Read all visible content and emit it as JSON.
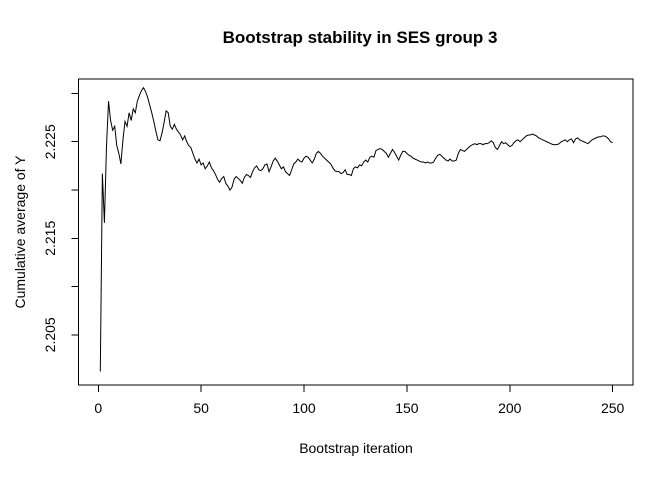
{
  "figure": {
    "background_color": "#ffffff",
    "foreground_color": "#000000"
  },
  "chart_data": {
    "type": "line",
    "title": "Bootstrap stability in SES group 3",
    "xlabel": "Bootstrap iteration",
    "ylabel": "Cumulative average of Y",
    "grid": false,
    "legend": "none",
    "line_color": "#000000",
    "xlim": [
      -9.6,
      259.9
    ],
    "ylim": [
      2.1998,
      2.2315
    ],
    "x_ticks": [
      0,
      50,
      100,
      150,
      200,
      250
    ],
    "x_tick_labels": [
      "0",
      "50",
      "100",
      "150",
      "200",
      "250"
    ],
    "y_ticks": [
      2.205,
      2.21,
      2.215,
      2.22,
      2.225,
      2.23
    ],
    "y_tick_labels": [
      "2.205",
      "",
      "2.215",
      "",
      "2.225",
      ""
    ],
    "series": [
      {
        "name": "cumulative-average-of-Y",
        "x_start": 1,
        "x_step": 1,
        "values": [
          2.2012,
          2.2217,
          2.2166,
          2.2245,
          2.2292,
          2.2272,
          2.2262,
          2.2266,
          2.2246,
          2.2238,
          2.2227,
          2.2252,
          2.2271,
          2.2266,
          2.228,
          2.2272,
          2.2284,
          2.228,
          2.2292,
          2.2298,
          2.2303,
          2.2306,
          2.2302,
          2.2296,
          2.2288,
          2.228,
          2.2271,
          2.2261,
          2.2252,
          2.2251,
          2.2259,
          2.227,
          2.2282,
          2.228,
          2.2266,
          2.2263,
          2.2268,
          2.2263,
          2.226,
          2.2257,
          2.2252,
          2.2256,
          2.225,
          2.2246,
          2.2244,
          2.2238,
          2.2232,
          2.2228,
          2.2232,
          2.2226,
          2.2228,
          2.2222,
          2.2225,
          2.2229,
          2.2223,
          2.222,
          2.2216,
          2.2211,
          2.2208,
          2.2212,
          2.2214,
          2.2207,
          2.2204,
          2.22,
          2.2203,
          2.2211,
          2.2214,
          2.2212,
          2.221,
          2.2207,
          2.2213,
          2.2216,
          2.2215,
          2.2213,
          2.2219,
          2.2223,
          2.2225,
          2.2221,
          2.222,
          2.2222,
          2.2226,
          2.2227,
          2.2219,
          2.2224,
          2.223,
          2.2233,
          2.223,
          2.2226,
          2.2222,
          2.2224,
          2.2219,
          2.2217,
          2.2215,
          2.2221,
          2.2227,
          2.2229,
          2.2232,
          2.223,
          2.2229,
          2.2233,
          2.2235,
          2.2234,
          2.2231,
          2.2228,
          2.2232,
          2.2238,
          2.224,
          2.2238,
          2.2235,
          2.2233,
          2.2231,
          2.2229,
          2.2227,
          2.2223,
          2.222,
          2.2219,
          2.2219,
          2.2217,
          2.2218,
          2.2221,
          2.2216,
          2.2216,
          2.2215,
          2.2222,
          2.2224,
          2.2223,
          2.2226,
          2.2225,
          2.2229,
          2.2231,
          2.2229,
          2.2234,
          2.2235,
          2.2234,
          2.2241,
          2.2242,
          2.2243,
          2.2242,
          2.224,
          2.2238,
          2.2234,
          2.2238,
          2.2242,
          2.2239,
          2.2235,
          2.2231,
          2.2236,
          2.224,
          2.224,
          2.2238,
          2.2236,
          2.2235,
          2.2233,
          2.2232,
          2.2231,
          2.223,
          2.2229,
          2.2229,
          2.2228,
          2.2229,
          2.2228,
          2.2228,
          2.2229,
          2.2233,
          2.2236,
          2.2237,
          2.2235,
          2.2233,
          2.2231,
          2.223,
          2.2232,
          2.223,
          2.223,
          2.2231,
          2.2238,
          2.2242,
          2.2241,
          2.224,
          2.2242,
          2.2244,
          2.2246,
          2.2247,
          2.2248,
          2.2247,
          2.2248,
          2.2248,
          2.2247,
          2.2248,
          2.2248,
          2.2249,
          2.2251,
          2.2249,
          2.2244,
          2.2242,
          2.2246,
          2.225,
          2.2248,
          2.2249,
          2.2247,
          2.2245,
          2.2246,
          2.2249,
          2.2251,
          2.2252,
          2.225,
          2.2252,
          2.2254,
          2.2256,
          2.2257,
          2.2257,
          2.2258,
          2.2257,
          2.2256,
          2.2254,
          2.2253,
          2.2252,
          2.2251,
          2.225,
          2.2249,
          2.2248,
          2.2247,
          2.2247,
          2.2247,
          2.2248,
          2.225,
          2.2251,
          2.2252,
          2.225,
          2.2252,
          2.2253,
          2.2249,
          2.2253,
          2.2254,
          2.2252,
          2.2251,
          2.225,
          2.2249,
          2.2248,
          2.225,
          2.2252,
          2.2253,
          2.2254,
          2.2255,
          2.2255,
          2.2256,
          2.2256,
          2.2255,
          2.2253,
          2.225,
          2.2249
        ]
      }
    ]
  }
}
